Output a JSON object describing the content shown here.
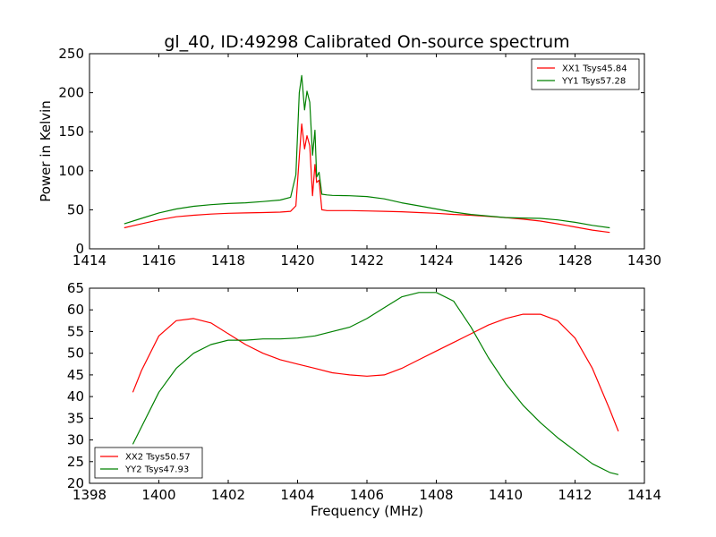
{
  "figure": {
    "title": "gl_40, ID:49298 Calibrated On-source spectrum"
  },
  "chart_data": [
    {
      "type": "line",
      "title": "gl_40, ID:49298 Calibrated On-source spectrum",
      "xlabel": "",
      "ylabel": "Power in Kelvin",
      "xlim": [
        1414,
        1430
      ],
      "ylim": [
        0,
        250
      ],
      "xticks": [
        "1414",
        "1416",
        "1418",
        "1420",
        "1422",
        "1424",
        "1426",
        "1428",
        "1430"
      ],
      "yticks": [
        "0",
        "50",
        "100",
        "150",
        "200",
        "250"
      ],
      "grid": false,
      "legend_position": "top-right",
      "series": [
        {
          "name": "XX1 Tsys45.84",
          "color": "#ff0000",
          "x": [
            1415,
            1415.5,
            1416,
            1416.5,
            1417,
            1417.5,
            1418,
            1418.5,
            1419,
            1419.5,
            1419.8,
            1419.95,
            1420.05,
            1420.12,
            1420.2,
            1420.27,
            1420.35,
            1420.43,
            1420.5,
            1420.55,
            1420.62,
            1420.7,
            1420.85,
            1421,
            1421.5,
            1422,
            1422.5,
            1423,
            1423.5,
            1424,
            1424.5,
            1425,
            1425.5,
            1426,
            1426.5,
            1427,
            1427.5,
            1428,
            1428.5,
            1429
          ],
          "y": [
            27,
            32,
            37,
            41,
            43,
            44.5,
            45.5,
            46,
            46.5,
            47,
            48,
            55,
            118,
            160,
            128,
            145,
            132,
            68,
            108,
            85,
            88,
            50,
            49,
            49,
            49,
            48.5,
            48,
            47.5,
            46.5,
            45.5,
            44,
            43,
            41.5,
            40,
            38,
            35.5,
            32,
            28,
            24,
            21
          ]
        },
        {
          "name": "YY1 Tsys57.28",
          "color": "#008000",
          "x": [
            1415,
            1415.5,
            1416,
            1416.5,
            1417,
            1417.5,
            1418,
            1418.5,
            1419,
            1419.5,
            1419.8,
            1419.95,
            1420.05,
            1420.12,
            1420.2,
            1420.27,
            1420.35,
            1420.43,
            1420.5,
            1420.55,
            1420.62,
            1420.7,
            1420.85,
            1421,
            1421.5,
            1422,
            1422.5,
            1423,
            1423.5,
            1424,
            1424.5,
            1425,
            1425.5,
            1426,
            1426.5,
            1427,
            1427.5,
            1428,
            1428.5,
            1429
          ],
          "y": [
            32,
            39,
            46,
            51,
            54.5,
            56.5,
            58,
            59,
            60.5,
            62.5,
            66,
            95,
            200,
            222,
            178,
            202,
            188,
            120,
            152,
            92,
            98,
            70,
            69,
            68.5,
            68,
            67,
            64,
            59,
            55,
            51,
            47,
            44,
            42,
            40,
            39.5,
            39,
            37,
            34,
            30,
            27
          ]
        }
      ]
    },
    {
      "type": "line",
      "title": "",
      "xlabel": "Frequency (MHz)",
      "ylabel": "",
      "xlim": [
        1398,
        1414
      ],
      "ylim": [
        20,
        65
      ],
      "xticks": [
        "1398",
        "1400",
        "1402",
        "1404",
        "1406",
        "1408",
        "1410",
        "1412",
        "1414"
      ],
      "yticks": [
        "20",
        "25",
        "30",
        "35",
        "40",
        "45",
        "50",
        "55",
        "60",
        "65"
      ],
      "grid": false,
      "legend_position": "bottom-left",
      "series": [
        {
          "name": "XX2 Tsys50.57",
          "color": "#ff0000",
          "x": [
            1399.25,
            1399.5,
            1400,
            1400.5,
            1401,
            1401.5,
            1402,
            1402.5,
            1403,
            1403.5,
            1404,
            1404.5,
            1405,
            1405.5,
            1406,
            1406.5,
            1407,
            1407.5,
            1408,
            1408.5,
            1409,
            1409.5,
            1410,
            1410.5,
            1411,
            1411.5,
            1412,
            1412.5,
            1413,
            1413.25
          ],
          "y": [
            41,
            46,
            54,
            57.5,
            58,
            57,
            54.5,
            52,
            50,
            48.5,
            47.5,
            46.5,
            45.5,
            45,
            44.7,
            45,
            46.5,
            48.5,
            50.5,
            52.5,
            54.5,
            56.5,
            58,
            59,
            59,
            57.5,
            53.5,
            46.5,
            37,
            32
          ]
        },
        {
          "name": "YY2 Tsys47.93",
          "color": "#008000",
          "x": [
            1399.25,
            1399.5,
            1400,
            1400.5,
            1401,
            1401.5,
            1402,
            1402.5,
            1403,
            1403.5,
            1404,
            1404.5,
            1405,
            1405.5,
            1406,
            1406.5,
            1407,
            1407.5,
            1408,
            1408.5,
            1409,
            1409.5,
            1410,
            1410.5,
            1411,
            1411.5,
            1412,
            1412.5,
            1413,
            1413.25
          ],
          "y": [
            29,
            33,
            41,
            46.5,
            50,
            52,
            53,
            53,
            53.3,
            53.3,
            53.5,
            54,
            55,
            56,
            58,
            60.5,
            63,
            64,
            64,
            62,
            56,
            49,
            43,
            38,
            34,
            30.5,
            27.5,
            24.5,
            22.5,
            22
          ]
        }
      ]
    }
  ]
}
